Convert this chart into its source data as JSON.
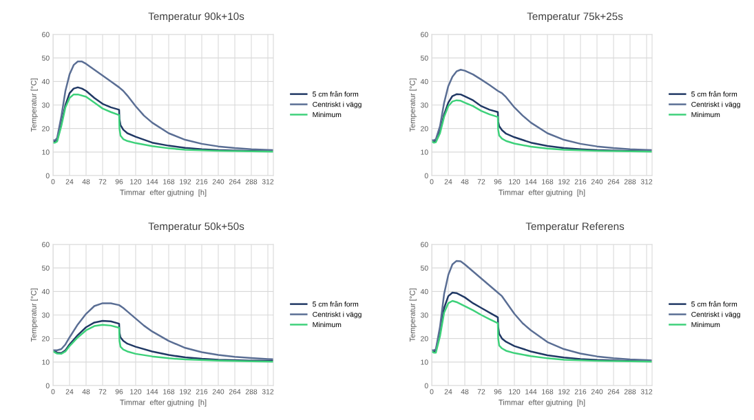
{
  "chart_data": [
    {
      "type": "line",
      "title": "Temperatur 90k+10s",
      "xlabel": "Timmar  efter gjutning  [h]",
      "ylabel": "Temperatur [°C]",
      "xlim": [
        0,
        320
      ],
      "xticks": [
        0,
        24,
        48,
        72,
        96,
        120,
        144,
        168,
        192,
        216,
        240,
        264,
        288,
        312
      ],
      "ylim": [
        0,
        60
      ],
      "yticks": [
        0,
        10,
        20,
        30,
        40,
        50,
        60
      ],
      "grid": true,
      "legend": "right",
      "marker": "none",
      "line_style": "solid",
      "series": [
        {
          "name": "5 cm från form",
          "color": "#203864",
          "x": [
            0,
            3,
            6,
            12,
            18,
            24,
            30,
            36,
            42,
            48,
            60,
            72,
            84,
            96,
            96.5,
            98,
            102,
            108,
            120,
            144,
            168,
            192,
            216,
            240,
            288,
            320
          ],
          "values": [
            15,
            14.5,
            15,
            22,
            30,
            35,
            37,
            37.5,
            37,
            36,
            33,
            30.5,
            29,
            28,
            24,
            21.5,
            19.5,
            18,
            16.5,
            14,
            12.7,
            11.8,
            11.2,
            10.8,
            10.5,
            10.4
          ]
        },
        {
          "name": "Centriskt i vägg",
          "color": "#5a6e94",
          "x": [
            0,
            3,
            6,
            12,
            18,
            24,
            30,
            36,
            42,
            48,
            60,
            72,
            84,
            96,
            102,
            108,
            120,
            132,
            144,
            168,
            192,
            216,
            240,
            264,
            288,
            312,
            320
          ],
          "values": [
            15,
            15,
            16,
            25,
            36,
            43,
            47,
            48.5,
            48.5,
            47.5,
            45,
            42.5,
            40,
            37.5,
            36,
            34,
            29.5,
            25.5,
            22.5,
            18,
            15.2,
            13.5,
            12.4,
            11.7,
            11.2,
            10.9,
            10.8
          ]
        },
        {
          "name": "Minimum",
          "color": "#3dd17a",
          "x": [
            0,
            3,
            6,
            12,
            18,
            24,
            30,
            36,
            48,
            60,
            72,
            84,
            96,
            96.5,
            98,
            102,
            108,
            120,
            144,
            168,
            192,
            240,
            288,
            320
          ],
          "values": [
            14,
            14,
            14.5,
            21,
            29,
            33,
            34.5,
            34.5,
            33.5,
            31,
            28.5,
            27,
            25.7,
            20,
            17,
            15.5,
            14.7,
            13.8,
            12.5,
            11.6,
            11,
            10.5,
            10.3,
            10.2
          ]
        }
      ]
    },
    {
      "type": "line",
      "title": "Temperatur 75k+25s",
      "xlabel": "Timmar  efter gjutning  [h]",
      "ylabel": "Temperatur [°C]",
      "xlim": [
        0,
        320
      ],
      "xticks": [
        0,
        24,
        48,
        72,
        96,
        120,
        144,
        168,
        192,
        216,
        240,
        264,
        288,
        312
      ],
      "ylim": [
        0,
        60
      ],
      "yticks": [
        0,
        10,
        20,
        30,
        40,
        50,
        60
      ],
      "grid": true,
      "legend": "right",
      "marker": "none",
      "line_style": "solid",
      "series": [
        {
          "name": "5 cm från form",
          "color": "#203864",
          "x": [
            0,
            3,
            6,
            12,
            18,
            24,
            30,
            36,
            42,
            48,
            60,
            72,
            84,
            96,
            96.5,
            98,
            102,
            108,
            120,
            144,
            168,
            192,
            216,
            240,
            288,
            320
          ],
          "values": [
            15,
            14.5,
            14.8,
            19,
            26,
            31,
            33.8,
            34.6,
            34.5,
            33.7,
            32,
            29.5,
            28,
            27,
            23,
            21,
            19.3,
            17.8,
            16.3,
            14,
            12.6,
            11.7,
            11.2,
            10.8,
            10.5,
            10.4
          ]
        },
        {
          "name": "Centriskt i vägg",
          "color": "#5a6e94",
          "x": [
            0,
            3,
            6,
            12,
            18,
            24,
            30,
            36,
            42,
            48,
            60,
            72,
            84,
            96,
            102,
            108,
            120,
            132,
            144,
            168,
            192,
            216,
            240,
            264,
            288,
            312,
            320
          ],
          "values": [
            15,
            15,
            15.5,
            21,
            31,
            38,
            42,
            44.3,
            45,
            44.6,
            43,
            40.8,
            38.5,
            36,
            35,
            33.3,
            29,
            25.5,
            22.5,
            18,
            15.2,
            13.5,
            12.4,
            11.7,
            11.2,
            10.9,
            10.8
          ]
        },
        {
          "name": "Minimum",
          "color": "#3dd17a",
          "x": [
            0,
            3,
            6,
            12,
            18,
            24,
            30,
            36,
            42,
            48,
            60,
            72,
            84,
            96,
            96.5,
            98,
            102,
            108,
            120,
            144,
            168,
            192,
            240,
            288,
            320
          ],
          "values": [
            14.5,
            14,
            14.2,
            18,
            25,
            29.5,
            31.5,
            32,
            31.8,
            31,
            29.5,
            27.5,
            26,
            24.9,
            19.5,
            17,
            15.7,
            14.7,
            13.6,
            12.3,
            11.5,
            11,
            10.5,
            10.3,
            10.2
          ]
        }
      ]
    },
    {
      "type": "line",
      "title": "Temperatur 50k+50s",
      "xlabel": "Timmar  efter gjutning  [h]",
      "ylabel": "Temperatur [°C]",
      "xlim": [
        0,
        320
      ],
      "xticks": [
        0,
        24,
        48,
        72,
        96,
        120,
        144,
        168,
        192,
        216,
        240,
        264,
        288,
        312
      ],
      "ylim": [
        0,
        60
      ],
      "yticks": [
        0,
        10,
        20,
        30,
        40,
        50,
        60
      ],
      "grid": true,
      "legend": "right",
      "marker": "none",
      "line_style": "solid",
      "series": [
        {
          "name": "5 cm från form",
          "color": "#203864",
          "x": [
            0,
            6,
            12,
            18,
            24,
            36,
            48,
            60,
            72,
            84,
            96,
            96.5,
            98,
            102,
            108,
            120,
            144,
            168,
            192,
            216,
            240,
            288,
            320
          ],
          "values": [
            15,
            14,
            13.8,
            15,
            17.5,
            21.5,
            24.8,
            26.8,
            27.5,
            27.3,
            26.3,
            22.5,
            20.5,
            19,
            17.8,
            16.5,
            14.5,
            13,
            12,
            11.4,
            11,
            10.6,
            10.5
          ]
        },
        {
          "name": "Centriskt i vägg",
          "color": "#5a6e94",
          "x": [
            0,
            6,
            12,
            18,
            24,
            36,
            48,
            60,
            72,
            84,
            96,
            102,
            108,
            120,
            132,
            144,
            168,
            192,
            216,
            240,
            264,
            288,
            312,
            320
          ],
          "values": [
            15,
            15,
            15.5,
            17.5,
            20.5,
            26,
            30.5,
            33.8,
            35,
            35,
            34.2,
            33,
            31.5,
            28.5,
            25.5,
            23,
            19,
            16,
            14.2,
            13,
            12.2,
            11.7,
            11.3,
            11.2
          ]
        },
        {
          "name": "Minimum",
          "color": "#3dd17a",
          "x": [
            0,
            6,
            12,
            18,
            24,
            36,
            48,
            60,
            72,
            84,
            96,
            96.5,
            98,
            102,
            108,
            120,
            144,
            168,
            192,
            240,
            288,
            320
          ],
          "values": [
            14.5,
            13.6,
            13.5,
            14.5,
            16.8,
            20.5,
            23.5,
            25.3,
            25.8,
            25.5,
            24.6,
            19,
            16.5,
            15.3,
            14.5,
            13.5,
            12.4,
            11.6,
            11.1,
            10.6,
            10.3,
            10.2
          ]
        }
      ]
    },
    {
      "type": "line",
      "title": "Temperatur Referens",
      "xlabel": "Timmar  efter gjutning  [h]",
      "ylabel": "Temperatur [°C]",
      "xlim": [
        0,
        320
      ],
      "xticks": [
        0,
        24,
        48,
        72,
        96,
        120,
        144,
        168,
        192,
        216,
        240,
        264,
        288,
        312
      ],
      "ylim": [
        0,
        60
      ],
      "yticks": [
        0,
        10,
        20,
        30,
        40,
        50,
        60
      ],
      "grid": true,
      "legend": "right",
      "marker": "none",
      "line_style": "solid",
      "series": [
        {
          "name": "5 cm från form",
          "color": "#203864",
          "x": [
            0,
            3,
            6,
            12,
            18,
            24,
            30,
            36,
            48,
            60,
            72,
            84,
            96,
            96.5,
            98,
            102,
            108,
            120,
            144,
            168,
            192,
            216,
            240,
            288,
            320
          ],
          "values": [
            15,
            14.5,
            15,
            23,
            33,
            38,
            39.5,
            39.3,
            37.5,
            35,
            33,
            31,
            29,
            25,
            22,
            20,
            18.6,
            16.8,
            14.5,
            12.9,
            11.9,
            11.3,
            10.9,
            10.5,
            10.4
          ]
        },
        {
          "name": "Centriskt i vägg",
          "color": "#5a6e94",
          "x": [
            0,
            3,
            6,
            12,
            18,
            24,
            30,
            36,
            42,
            48,
            60,
            72,
            84,
            96,
            102,
            108,
            120,
            132,
            144,
            168,
            192,
            216,
            240,
            264,
            288,
            312,
            320
          ],
          "values": [
            15,
            15,
            15.5,
            25,
            39,
            47,
            51.5,
            53,
            52.8,
            51.5,
            48.5,
            45.5,
            42.5,
            39.5,
            38,
            35.5,
            30.5,
            26.5,
            23.5,
            18.5,
            15.5,
            13.6,
            12.4,
            11.6,
            11.1,
            10.8,
            10.7
          ]
        },
        {
          "name": "Minimum",
          "color": "#3dd17a",
          "x": [
            0,
            3,
            6,
            12,
            18,
            24,
            30,
            36,
            48,
            60,
            72,
            84,
            96,
            96.5,
            98,
            102,
            108,
            120,
            144,
            168,
            192,
            240,
            288,
            320
          ],
          "values": [
            14.5,
            14,
            14,
            21,
            31,
            35,
            36,
            35.5,
            33.8,
            32,
            30,
            28.2,
            26.5,
            20,
            17,
            15.8,
            14.8,
            13.8,
            12.5,
            11.6,
            11,
            10.5,
            10.3,
            10.2
          ]
        }
      ]
    }
  ]
}
